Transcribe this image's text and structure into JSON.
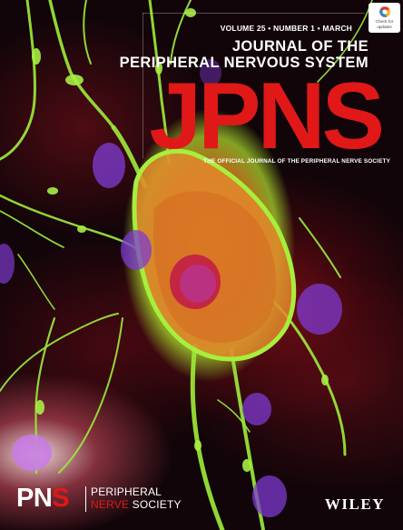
{
  "issue": {
    "volume": "VOLUME 25",
    "separator": "•",
    "number": "NUMBER 1",
    "month": "MARCH"
  },
  "journal": {
    "title_line1": "JOURNAL OF THE",
    "title_line2": "PERIPHERAL NERVOUS SYSTEM",
    "acronym": "JPNS",
    "tagline": "THE OFFICIAL JOURNAL OF THE PERIPHERAL NERVE SOCIETY"
  },
  "check_badge": {
    "line1": "Check for",
    "line2": "updates",
    "icon": "crossmark-icon"
  },
  "society": {
    "acronym_main": "PN",
    "acronym_accent": "S",
    "name_line1": "PERIPHERAL",
    "name_line2_accent": "NERVE",
    "name_line2_rest": " SOCIETY"
  },
  "publisher": "WILEY",
  "colors": {
    "brand_red": "#e01818",
    "neuron_green": "#9be83a",
    "nucleus_purple": "#8a3cc8",
    "background": "#120509"
  }
}
